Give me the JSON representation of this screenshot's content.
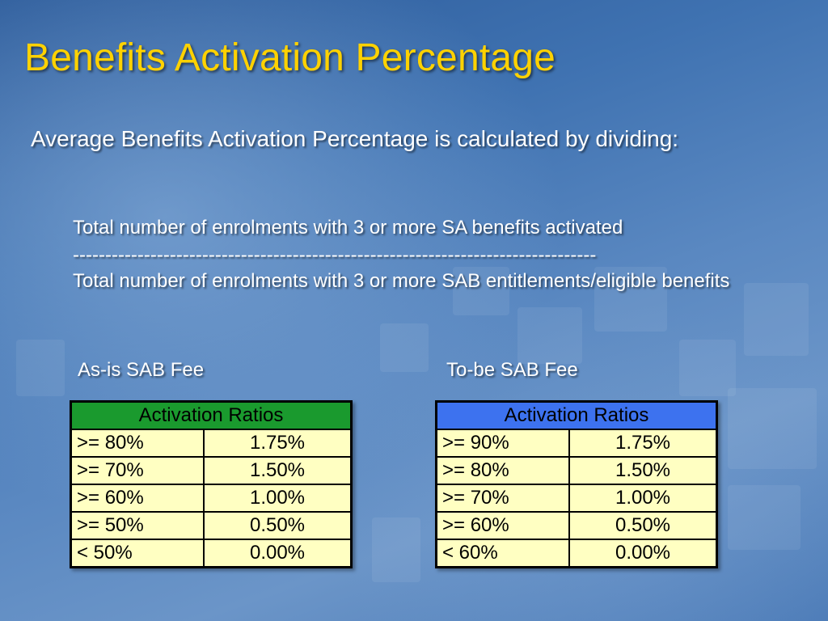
{
  "slide": {
    "title": "Benefits Activation Percentage",
    "intro": "Average Benefits Activation Percentage is calculated by dividing:",
    "formula": {
      "numerator": "Total number of enrolments with 3 or more SA benefits activated",
      "divider": "---------------------------------------------------------------------------------",
      "denominator": "Total number of enrolments with 3 or more SAB entitlements/eligible benefits"
    }
  },
  "tables": {
    "as_is": {
      "label": "As-is SAB Fee",
      "header": "Activation Ratios",
      "header_color": "#1a9a2e",
      "rows": [
        {
          "condition": ">= 80%",
          "fee": "1.75%"
        },
        {
          "condition": ">= 70%",
          "fee": "1.50%"
        },
        {
          "condition": ">= 60%",
          "fee": "1.00%"
        },
        {
          "condition": ">= 50%",
          "fee": "0.50%"
        },
        {
          "condition": "< 50%",
          "fee": "0.00%"
        }
      ]
    },
    "to_be": {
      "label": "To-be SAB Fee",
      "header": "Activation Ratios",
      "header_color": "#3d72ef",
      "rows": [
        {
          "condition": ">= 90%",
          "fee": "1.75%"
        },
        {
          "condition": ">= 80%",
          "fee": "1.50%"
        },
        {
          "condition": ">= 70%",
          "fee": "1.00%"
        },
        {
          "condition": ">= 60%",
          "fee": "0.50%"
        },
        {
          "condition": "< 60%",
          "fee": "0.00%"
        }
      ]
    }
  },
  "colors": {
    "title": "#ffd200",
    "cell_background": "#ffffc2"
  }
}
